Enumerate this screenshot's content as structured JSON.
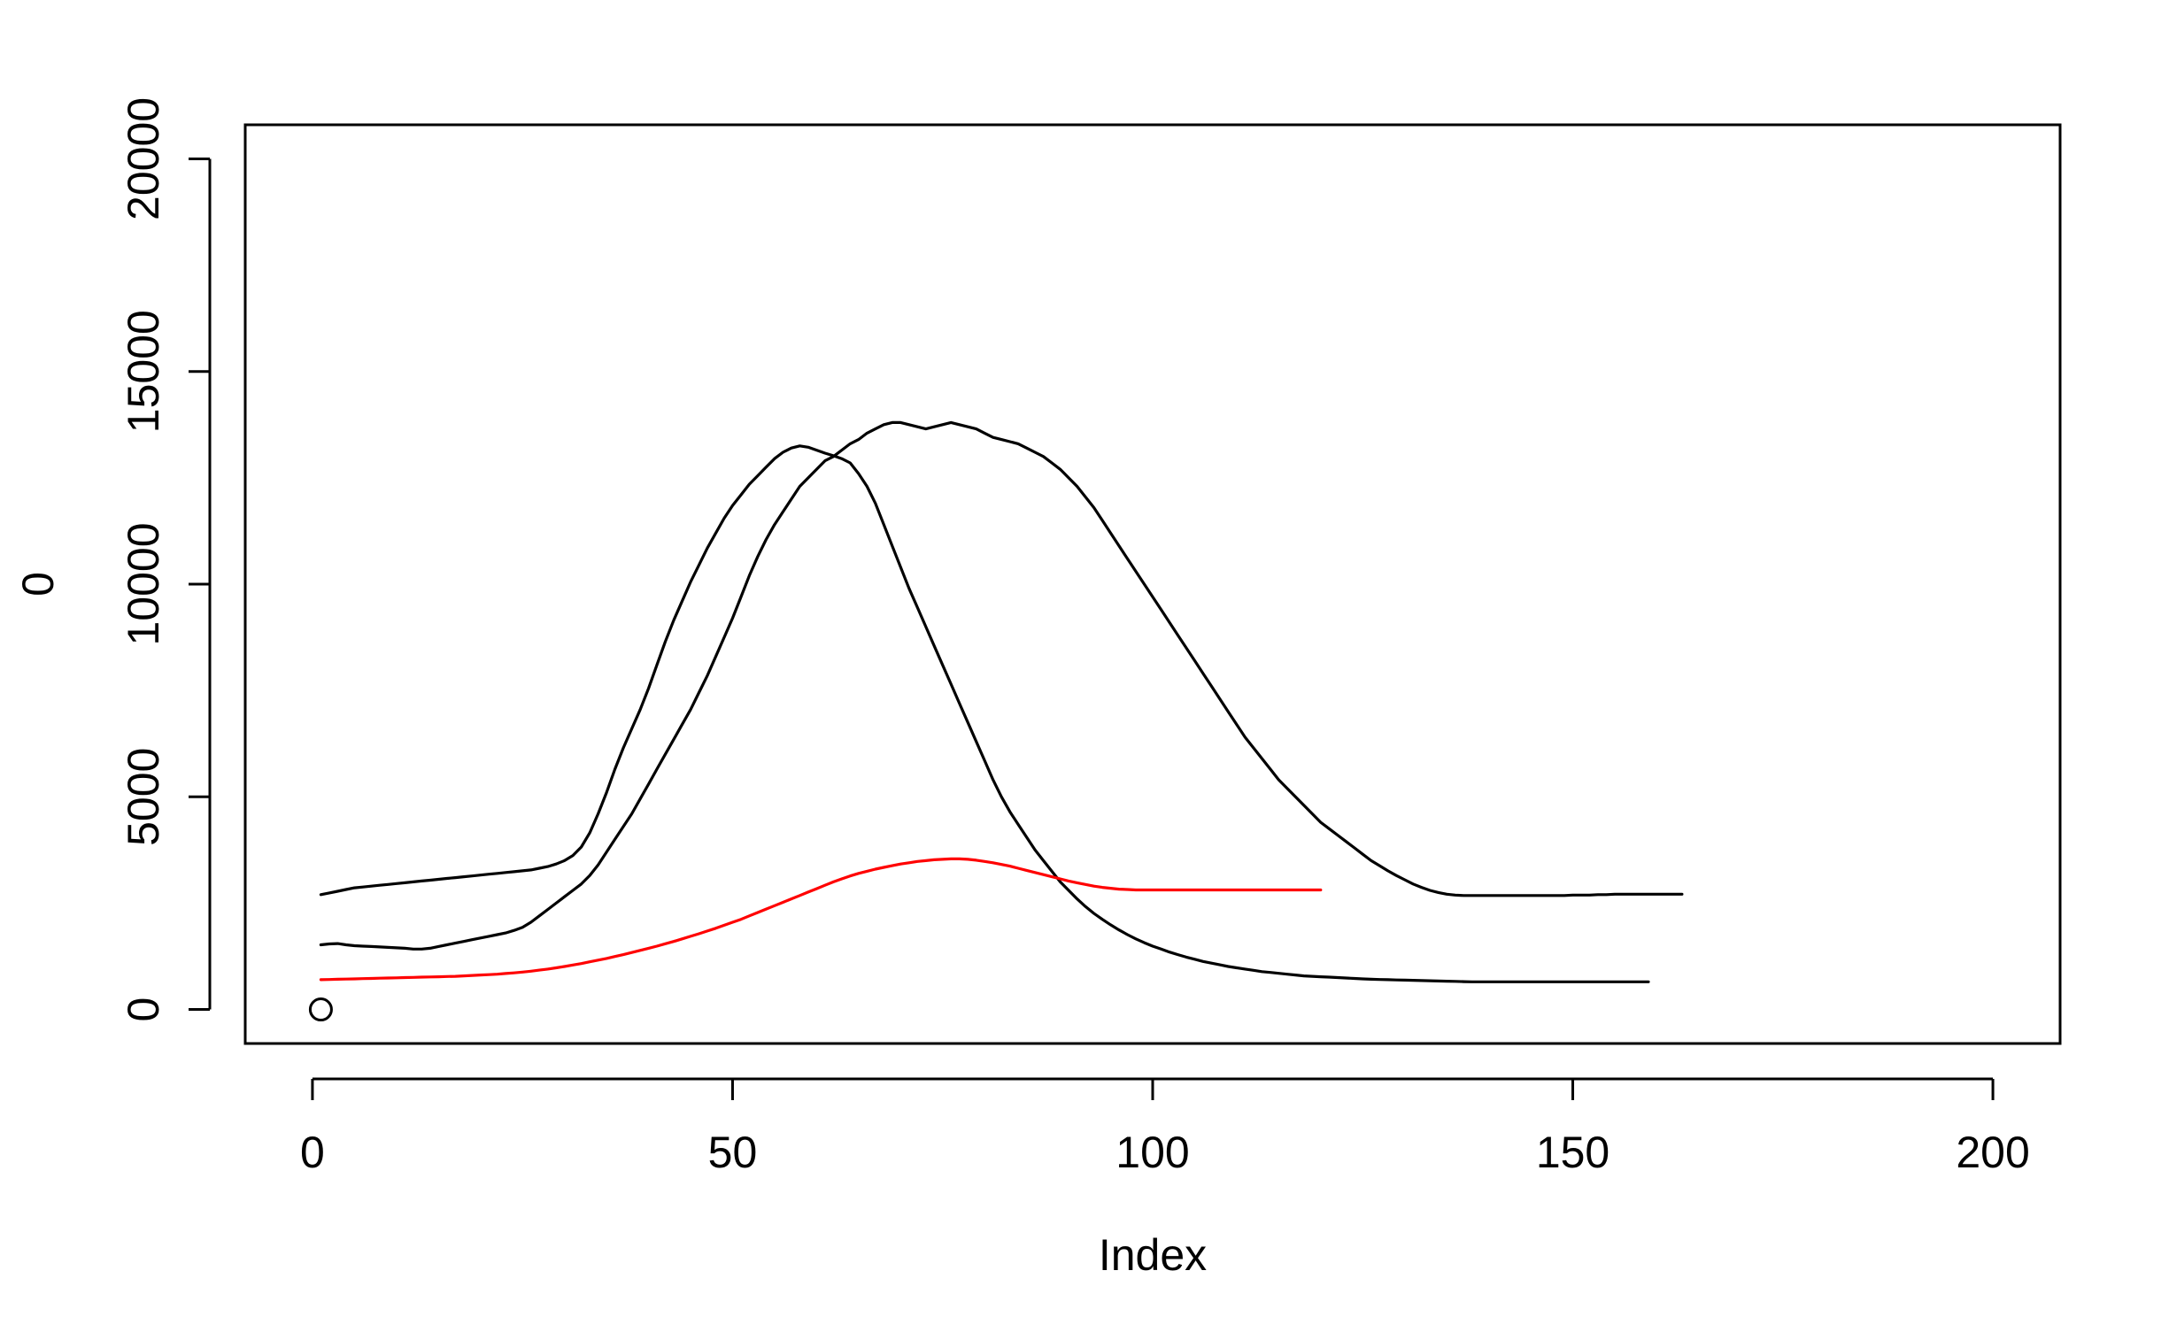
{
  "chart_data": {
    "type": "line",
    "title": "",
    "xlabel": "Index",
    "ylabel": "0",
    "xlim": [
      -8,
      208
    ],
    "ylim": [
      -800,
      20800
    ],
    "x_ticks": [
      "0",
      "50",
      "100",
      "150",
      "200"
    ],
    "y_ticks": [
      "0",
      "5000",
      "10000",
      "15000",
      "20000"
    ],
    "grid": false,
    "legend": "none",
    "point": {
      "x": 1,
      "y": 0
    },
    "colors": {
      "black": "#000000",
      "red": "#ff0000"
    },
    "series": [
      {
        "color": "#000000",
        "x_start": 1,
        "values": [
          1520,
          1540,
          1550,
          1520,
          1500,
          1490,
          1480,
          1470,
          1460,
          1450,
          1440,
          1420,
          1420,
          1440,
          1480,
          1520,
          1560,
          1600,
          1640,
          1680,
          1720,
          1760,
          1800,
          1860,
          1930,
          2050,
          2200,
          2350,
          2500,
          2650,
          2800,
          2950,
          3150,
          3400,
          3700,
          4000,
          4300,
          4600,
          4950,
          5300,
          5650,
          6000,
          6350,
          6700,
          7050,
          7450,
          7850,
          8300,
          8750,
          9200,
          9700,
          10200,
          10650,
          11050,
          11400,
          11700,
          12000,
          12300,
          12500,
          12700,
          12900,
          13000,
          13150,
          13300,
          13400,
          13550,
          13650,
          13750,
          13800,
          13800,
          13750,
          13700,
          13650,
          13700,
          13750,
          13800,
          13750,
          13700,
          13650,
          13550,
          13450,
          13400,
          13350,
          13300,
          13200,
          13100,
          13000,
          12850,
          12700,
          12500,
          12300,
          12050,
          11800,
          11500,
          11200,
          10900,
          10600,
          10300,
          10000,
          9700,
          9400,
          9100,
          8800,
          8500,
          8200,
          7900,
          7600,
          7300,
          7000,
          6700,
          6400,
          6150,
          5900,
          5650,
          5400,
          5200,
          5000,
          4800,
          4600,
          4400,
          4250,
          4100,
          3950,
          3800,
          3650,
          3500,
          3380,
          3260,
          3150,
          3050,
          2950,
          2870,
          2800,
          2750,
          2710,
          2690,
          2680,
          2680,
          2680,
          2680,
          2680,
          2680,
          2680,
          2680,
          2680,
          2680,
          2680,
          2680,
          2680,
          2690,
          2690,
          2690,
          2700,
          2700,
          2710,
          2710,
          2710,
          2710,
          2710,
          2710,
          2710,
          2710,
          2710
        ]
      },
      {
        "color": "#000000",
        "x_start": 1,
        "values": [
          2700,
          2740,
          2780,
          2820,
          2860,
          2880,
          2900,
          2920,
          2940,
          2960,
          2980,
          3000,
          3020,
          3040,
          3060,
          3080,
          3100,
          3120,
          3140,
          3160,
          3180,
          3200,
          3220,
          3240,
          3260,
          3280,
          3320,
          3360,
          3420,
          3500,
          3620,
          3820,
          4150,
          4600,
          5100,
          5650,
          6150,
          6600,
          7050,
          7550,
          8100,
          8650,
          9150,
          9600,
          10050,
          10450,
          10850,
          11200,
          11550,
          11850,
          12100,
          12350,
          12550,
          12750,
          12950,
          13100,
          13200,
          13250,
          13220,
          13150,
          13080,
          13020,
          12950,
          12850,
          12600,
          12300,
          11900,
          11400,
          10900,
          10400,
          9900,
          9450,
          9000,
          8550,
          8100,
          7650,
          7200,
          6750,
          6300,
          5850,
          5400,
          5000,
          4650,
          4350,
          4050,
          3750,
          3500,
          3250,
          3000,
          2800,
          2600,
          2420,
          2260,
          2120,
          1990,
          1870,
          1760,
          1660,
          1570,
          1490,
          1420,
          1350,
          1290,
          1230,
          1180,
          1130,
          1090,
          1050,
          1010,
          980,
          950,
          920,
          890,
          870,
          850,
          830,
          810,
          790,
          780,
          770,
          760,
          750,
          740,
          730,
          720,
          710,
          705,
          700,
          695,
          690,
          685,
          680,
          675,
          670,
          665,
          660,
          655,
          650,
          650,
          650,
          650,
          650,
          650,
          650,
          650,
          650,
          650,
          650,
          650,
          650,
          650,
          650,
          650,
          650,
          650,
          650,
          650,
          650,
          650
        ]
      },
      {
        "color": "#ff0000",
        "x_start": 1,
        "values": [
          700,
          705,
          710,
          715,
          720,
          725,
          730,
          735,
          740,
          745,
          750,
          755,
          760,
          765,
          770,
          775,
          780,
          790,
          800,
          810,
          820,
          830,
          845,
          860,
          880,
          900,
          925,
          950,
          980,
          1010,
          1045,
          1080,
          1120,
          1160,
          1200,
          1245,
          1290,
          1340,
          1390,
          1440,
          1490,
          1545,
          1600,
          1660,
          1720,
          1780,
          1845,
          1910,
          1980,
          2050,
          2120,
          2200,
          2280,
          2360,
          2440,
          2520,
          2600,
          2680,
          2760,
          2840,
          2920,
          3000,
          3070,
          3140,
          3200,
          3250,
          3300,
          3340,
          3380,
          3420,
          3450,
          3480,
          3500,
          3520,
          3530,
          3540,
          3540,
          3530,
          3510,
          3480,
          3450,
          3410,
          3370,
          3320,
          3270,
          3220,
          3170,
          3120,
          3070,
          3020,
          2980,
          2940,
          2900,
          2870,
          2850,
          2830,
          2820,
          2810,
          2810,
          2810,
          2810,
          2810,
          2810,
          2810,
          2810,
          2810,
          2810,
          2810,
          2810,
          2810,
          2810,
          2810,
          2810,
          2810,
          2810,
          2810,
          2810,
          2810,
          2810,
          2810
        ]
      }
    ]
  }
}
